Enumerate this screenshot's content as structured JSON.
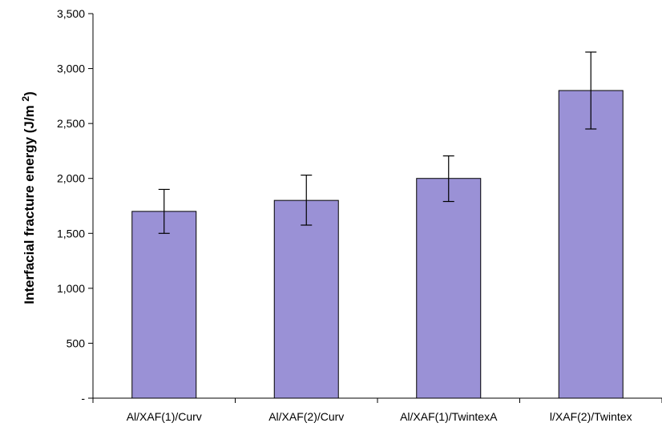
{
  "chart_data": {
    "type": "bar",
    "categories": [
      "Al/XAF(1)/Curv",
      "Al/XAF(2)/Curv",
      "Al/XAF(1)/TwintexA",
      "l/XAF(2)/Twintex"
    ],
    "values": [
      1700,
      1800,
      2000,
      2800
    ],
    "error_low": [
      1500,
      1575,
      1790,
      2450
    ],
    "error_high": [
      1900,
      2030,
      2205,
      3150
    ],
    "ylabel": "Interfacial fracture energy (J/m",
    "ylabel_superscript": "2",
    "ylabel_suffix": ")",
    "ylim": [
      0,
      3500
    ],
    "yticks": [
      0,
      500,
      1000,
      1500,
      2000,
      2500,
      3000,
      3500
    ],
    "ytick_labels": [
      "-",
      "500",
      "1,000",
      "1,500",
      "2,000",
      "2,500",
      "3,000",
      "3,500"
    ],
    "grid": false,
    "bar_color": "#9a91d6"
  }
}
